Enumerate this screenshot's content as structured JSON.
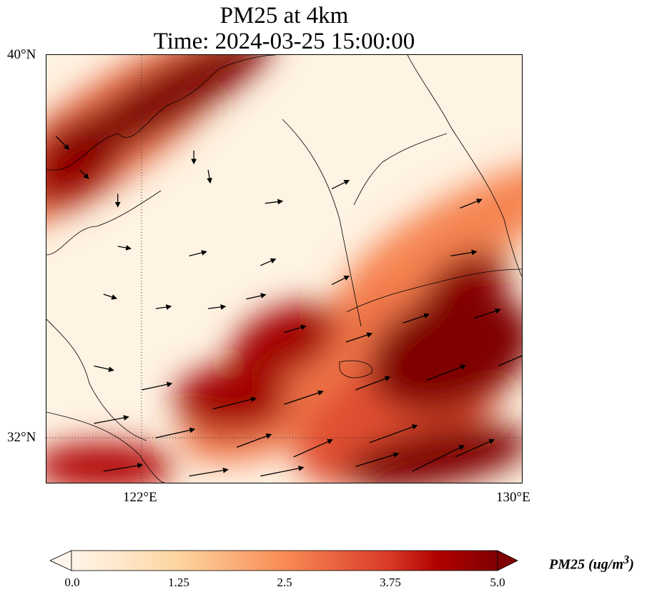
{
  "title_line1": "PM25 at 4km",
  "title_line2": "Time: 2024-03-25 15:00:00",
  "chart_data": {
    "type": "heatmap",
    "variable": "PM25",
    "units_label": "PM25 (ug/m",
    "units_sup": "3",
    "units_close": ")",
    "lon_range": [
      120,
      130
    ],
    "lat_range": [
      31,
      40
    ],
    "x_ticks": [
      {
        "value": 122,
        "label": "122°E"
      },
      {
        "value": 130,
        "label": "130°E"
      }
    ],
    "y_ticks": [
      {
        "value": 40,
        "label": "40°N"
      },
      {
        "value": 32,
        "label": "32°N"
      }
    ],
    "colorbar": {
      "min": 0,
      "max": 5,
      "ticks": [
        "0.0",
        "1.25",
        "2.5",
        "3.75",
        "5.0"
      ],
      "extend": "both"
    },
    "colormap_stops": [
      [
        0,
        "#fff5eb"
      ],
      [
        1.25,
        "#fdd5a0"
      ],
      [
        2.5,
        "#f98b55"
      ],
      [
        3.75,
        "#d73826"
      ],
      [
        4.3,
        "#b00000"
      ],
      [
        5,
        "#7f0000"
      ]
    ],
    "field_regions": [
      {
        "lon": 122.5,
        "lat": 39.1,
        "rx": 2.6,
        "ry": 0.6,
        "rot": -30,
        "value": 5
      },
      {
        "lon": 120.6,
        "lat": 37.8,
        "rx": 1.2,
        "ry": 0.8,
        "rot": -40,
        "value": 4.6
      },
      {
        "lon": 128.8,
        "lat": 35.2,
        "rx": 1.0,
        "ry": 0.6,
        "rot": -30,
        "value": 4.8
      },
      {
        "lon": 128.5,
        "lat": 33.8,
        "rx": 1.8,
        "ry": 1.2,
        "rot": -20,
        "value": 5
      },
      {
        "lon": 125.0,
        "lat": 34.0,
        "rx": 1.2,
        "ry": 0.7,
        "rot": -25,
        "value": 4.5
      },
      {
        "lon": 123.9,
        "lat": 32.8,
        "rx": 1.2,
        "ry": 0.7,
        "rot": 0,
        "value": 4.5
      },
      {
        "lon": 128.2,
        "lat": 31.6,
        "rx": 2.0,
        "ry": 0.6,
        "rot": -10,
        "value": 5
      },
      {
        "lon": 121.2,
        "lat": 31.4,
        "rx": 1.5,
        "ry": 0.5,
        "rot": 0,
        "value": 4.3
      },
      {
        "lon": 127.5,
        "lat": 32.6,
        "rx": 2.5,
        "ry": 1.2,
        "rot": -30,
        "value": 3.4
      },
      {
        "lon": 125.5,
        "lat": 33.3,
        "rx": 3,
        "ry": 1.2,
        "rot": -30,
        "value": 2.8
      },
      {
        "lon": 128.6,
        "lat": 36.2,
        "rx": 2.8,
        "ry": 0.8,
        "rot": -30,
        "value": 2.6
      },
      {
        "lon": 121.3,
        "lat": 38.4,
        "rx": 3.5,
        "ry": 1.0,
        "rot": -35,
        "value": 3.0
      }
    ],
    "wind_vectors": [
      [
        120.2,
        38.3,
        0.3,
        -0.3
      ],
      [
        120.7,
        37.6,
        0.2,
        -0.2
      ],
      [
        121.5,
        37.1,
        0.0,
        -0.3
      ],
      [
        123.1,
        38.0,
        0,
        -0.3
      ],
      [
        123.4,
        37.6,
        0.05,
        -0.3
      ],
      [
        124.6,
        36.9,
        0.4,
        0.05
      ],
      [
        126.0,
        37.2,
        0.4,
        0.2
      ],
      [
        128.7,
        36.8,
        0.5,
        0.2
      ],
      [
        128.5,
        35.8,
        0.6,
        0.1
      ],
      [
        121.5,
        36.0,
        0.3,
        -0.05
      ],
      [
        123.0,
        35.8,
        0.4,
        0.1
      ],
      [
        124.5,
        35.6,
        0.35,
        0.15
      ],
      [
        126.0,
        35.2,
        0.4,
        0.2
      ],
      [
        121.2,
        35.0,
        0.3,
        -0.1
      ],
      [
        122.3,
        34.7,
        0.35,
        0.05
      ],
      [
        123.4,
        34.7,
        0.4,
        0.05
      ],
      [
        124.2,
        34.9,
        0.45,
        0.1
      ],
      [
        125.0,
        34.2,
        0.5,
        0.15
      ],
      [
        126.3,
        34.0,
        0.6,
        0.2
      ],
      [
        127.5,
        34.4,
        0.6,
        0.2
      ],
      [
        129.0,
        34.5,
        0.6,
        0.2
      ],
      [
        121.0,
        33.5,
        0.45,
        -0.1
      ],
      [
        122.0,
        33.0,
        0.7,
        0.15
      ],
      [
        123.5,
        32.6,
        1.0,
        0.25
      ],
      [
        125.0,
        32.7,
        0.9,
        0.3
      ],
      [
        126.5,
        33.0,
        0.8,
        0.3
      ],
      [
        128.0,
        33.2,
        0.9,
        0.35
      ],
      [
        129.5,
        33.5,
        0.7,
        0.3
      ],
      [
        121.0,
        32.3,
        0.8,
        0.15
      ],
      [
        122.3,
        32.0,
        0.9,
        0.2
      ],
      [
        124.0,
        31.8,
        0.8,
        0.3
      ],
      [
        125.2,
        31.6,
        0.9,
        0.4
      ],
      [
        126.8,
        31.9,
        1.1,
        0.4
      ],
      [
        128.6,
        31.6,
        0.9,
        0.4
      ],
      [
        121.2,
        31.3,
        0.9,
        0.15
      ],
      [
        123.0,
        31.2,
        0.9,
        0.15
      ],
      [
        124.5,
        31.2,
        1.0,
        0.2
      ],
      [
        126.5,
        31.4,
        1.0,
        0.3
      ],
      [
        127.7,
        31.3,
        1.2,
        0.6
      ]
    ]
  }
}
